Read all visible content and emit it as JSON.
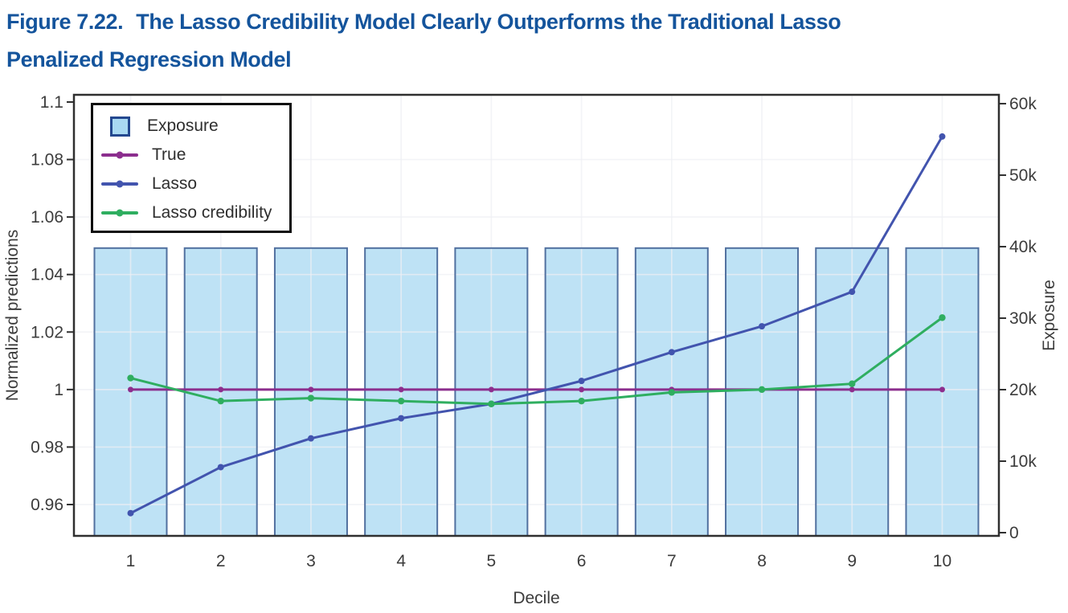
{
  "figure": {
    "label": "Figure 7.22.",
    "title_line1": "The Lasso Credibility Model Clearly Outperforms the Traditional Lasso",
    "title_line2": "Penalized Regression Model"
  },
  "colors": {
    "title_blue": "#14549C",
    "axis_text": "#3C3C3C",
    "plot_border": "#2F2F2F",
    "gridline": "rgba(238,240,244,0.7)",
    "bar_fill": "#BEE2F5",
    "bar_stroke": "#51709F",
    "legend_swatch_fill": "#A9D9F2",
    "legend_swatch_stroke": "#24488F"
  },
  "chart_data": {
    "type": "combo",
    "xlabel": "Decile",
    "x_categories": [
      "1",
      "2",
      "3",
      "4",
      "5",
      "6",
      "7",
      "8",
      "9",
      "10"
    ],
    "left_axis": {
      "label": "Normalized predictions",
      "range": [
        0.9491,
        1.10251
      ],
      "ticks": [
        0.96,
        0.98,
        1,
        1.02,
        1.04,
        1.06,
        1.08,
        1.1
      ],
      "tick_labels": [
        "0.96",
        "0.98",
        "1",
        "1.02",
        "1.04",
        "1.06",
        "1.08",
        "1.1"
      ],
      "gridline_ticks": [
        0.96,
        0.98,
        1,
        1.02,
        1.04,
        1.06,
        1.08
      ]
    },
    "right_axis": {
      "label": "Exposure",
      "range": [
        -450,
        61240
      ],
      "ticks": [
        0,
        10000,
        20000,
        30000,
        40000,
        50000,
        60000
      ],
      "tick_labels": [
        "0",
        "10k",
        "20k",
        "30k",
        "40k",
        "50k",
        "60k"
      ]
    },
    "bars": {
      "name": "Exposure",
      "axis": "right",
      "values": [
        39800,
        39800,
        39800,
        39800,
        39800,
        39800,
        39800,
        39800,
        39800,
        39800
      ]
    },
    "series": [
      {
        "name": "True",
        "color": "#8C2E8E",
        "marker_r": 3.5,
        "values": [
          1.0,
          1.0,
          1.0,
          1.0,
          1.0,
          1.0,
          1.0,
          1.0,
          1.0,
          1.0
        ]
      },
      {
        "name": "Lasso",
        "color": "#4254AE",
        "marker_r": 4,
        "values": [
          0.957,
          0.973,
          0.983,
          0.99,
          0.995,
          1.003,
          1.013,
          1.022,
          1.034,
          1.088
        ]
      },
      {
        "name": "Lasso credibility",
        "color": "#2FAE60",
        "marker_r": 4.2,
        "values": [
          1.004,
          0.996,
          0.997,
          0.996,
          0.995,
          0.996,
          0.999,
          1.0,
          1.002,
          1.025
        ]
      }
    ],
    "legend": {
      "position": "top-left",
      "entries": [
        {
          "label": "Exposure",
          "type": "bar-swatch"
        },
        {
          "label": "True",
          "type": "line",
          "series": 0
        },
        {
          "label": "Lasso",
          "type": "line",
          "series": 1
        },
        {
          "label": "Lasso credibility",
          "type": "line",
          "series": 2
        }
      ]
    }
  }
}
